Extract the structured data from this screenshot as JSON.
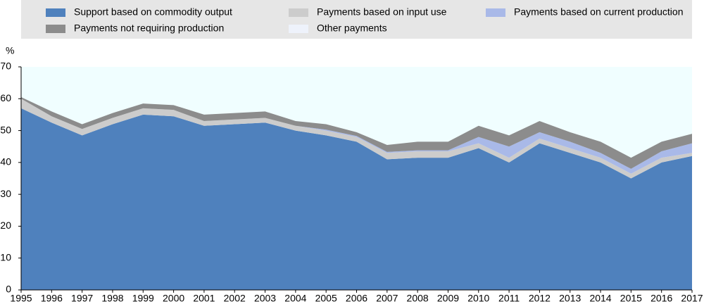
{
  "chart_data": {
    "type": "stacked_area",
    "y_label": "%",
    "categories": [
      "1995",
      "1996",
      "1997",
      "1998",
      "1999",
      "2000",
      "2001",
      "2002",
      "2003",
      "2004",
      "2005",
      "2006",
      "2007",
      "2008",
      "2009",
      "2010",
      "2011",
      "2012",
      "2013",
      "2014",
      "2015",
      "2016",
      "2017"
    ],
    "ylim": [
      0,
      70
    ],
    "yticks": [
      0,
      10,
      20,
      30,
      40,
      50,
      60,
      70
    ],
    "series": [
      {
        "name": "Support based on commodity output",
        "color": "#4f81bd",
        "values": [
          57,
          52.5,
          48.5,
          52,
          55,
          54.5,
          51.5,
          52,
          52.5,
          50,
          48.5,
          46.5,
          41,
          41.5,
          41.5,
          44.5,
          40,
          46,
          43,
          40,
          35,
          40,
          42
        ]
      },
      {
        "name": "Payments based on input use",
        "color": "#cccccc",
        "values": [
          3,
          2,
          2,
          2,
          2,
          2,
          1.5,
          1.5,
          1.5,
          1.5,
          1.5,
          1.5,
          2,
          2,
          2,
          1.5,
          1.5,
          1.5,
          1.5,
          1.5,
          1.5,
          1.5,
          1
        ]
      },
      {
        "name": "Payments based on current production",
        "color": "#a9b9e8",
        "values": [
          0,
          0,
          0,
          0,
          0,
          0,
          0,
          0,
          0,
          0,
          0.3,
          0.3,
          0.3,
          0.3,
          0.3,
          2,
          3.5,
          2,
          2,
          1.5,
          1.5,
          2,
          3
        ]
      },
      {
        "name": "Payments not requiring production",
        "color": "#8c8c8c",
        "values": [
          0.5,
          1.5,
          1.5,
          1.5,
          1.5,
          1.5,
          2,
          2,
          2,
          1.5,
          1.7,
          1.2,
          2.2,
          2.7,
          2.7,
          3.5,
          3.5,
          3.5,
          3,
          3.5,
          3.5,
          3,
          3
        ]
      },
      {
        "name": "Other payments",
        "color": "#eef2fb",
        "values": [
          0,
          0,
          0,
          0,
          0,
          0,
          0,
          0,
          0,
          0,
          0,
          0,
          0,
          0,
          0,
          0,
          0,
          0,
          0,
          0,
          0,
          0,
          0
        ]
      }
    ],
    "plot_background": "#f0feff"
  }
}
